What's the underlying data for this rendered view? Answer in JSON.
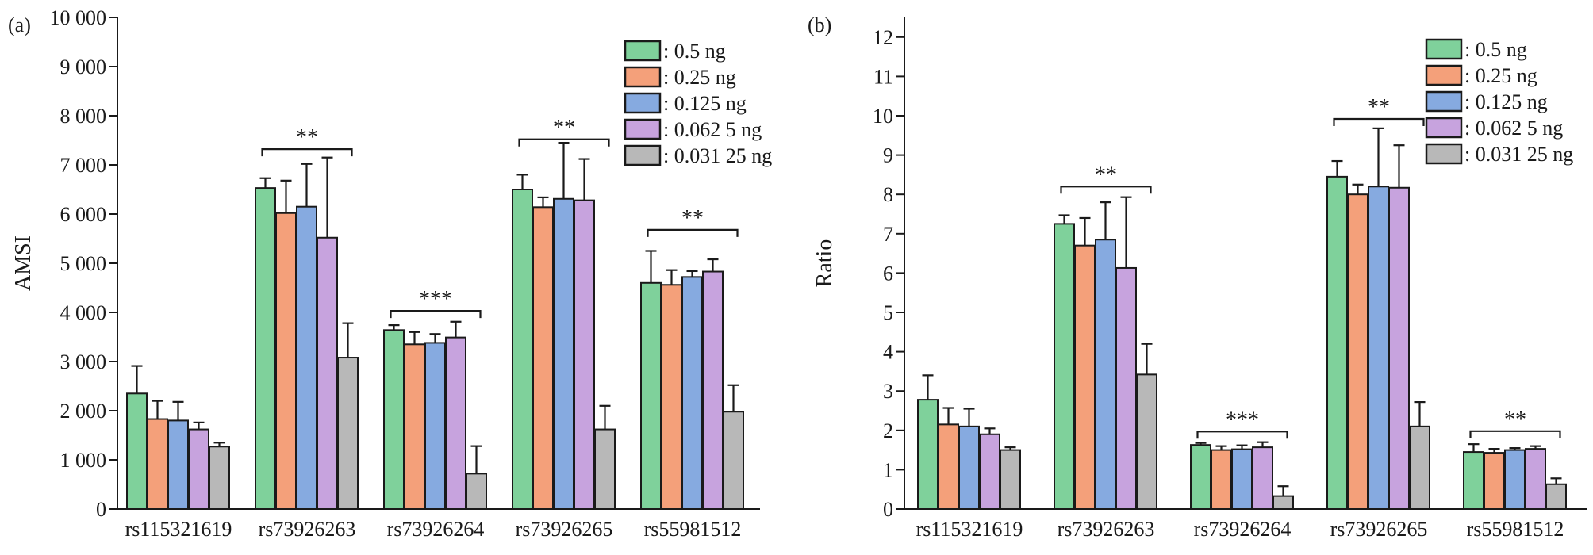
{
  "colors": {
    "series": [
      "#7fd19b",
      "#f4a07a",
      "#86aae0",
      "#c7a3de",
      "#b8b8b8"
    ],
    "axis": "#1a1a1a"
  },
  "chart_data": [
    {
      "type": "bar",
      "panel": "(a)",
      "title": "",
      "xlabel": "",
      "ylabel": "AMSI",
      "ylim": [
        0,
        10000
      ],
      "yticks": [
        0,
        1000,
        2000,
        3000,
        4000,
        5000,
        6000,
        7000,
        8000,
        9000,
        10000
      ],
      "ytick_labels": [
        "0",
        "1 000",
        "2 000",
        "3 000",
        "4 000",
        "5 000",
        "6 000",
        "7 000",
        "8 000",
        "9 000",
        "10 000"
      ],
      "categories": [
        "rs115321619",
        "rs73926263",
        "rs73926264",
        "rs73926265",
        "rs55981512"
      ],
      "legend_position": "top-right",
      "series": [
        {
          "name": ": 0.5 ng",
          "values": [
            2350,
            6530,
            3640,
            6500,
            4600
          ],
          "errors": [
            560,
            200,
            100,
            300,
            650
          ]
        },
        {
          "name": ": 0.25 ng",
          "values": [
            1830,
            6020,
            3350,
            6140,
            4560
          ],
          "errors": [
            370,
            660,
            250,
            200,
            300
          ]
        },
        {
          "name": ": 0.125 ng",
          "values": [
            1800,
            6150,
            3380,
            6310,
            4720
          ],
          "errors": [
            380,
            870,
            180,
            1140,
            120
          ]
        },
        {
          "name": ": 0.062 5 ng",
          "values": [
            1620,
            5520,
            3490,
            6280,
            4830
          ],
          "errors": [
            140,
            1630,
            320,
            840,
            250
          ]
        },
        {
          "name": ": 0.031 25 ng",
          "values": [
            1270,
            3080,
            720,
            1620,
            1980
          ],
          "errors": [
            80,
            700,
            560,
            480,
            540
          ]
        }
      ],
      "significance": [
        {
          "category": "rs73926263",
          "label": "**",
          "bracket_y": 7320
        },
        {
          "category": "rs73926264",
          "label": "***",
          "bracket_y": 4030
        },
        {
          "category": "rs73926265",
          "label": "**",
          "bracket_y": 7520
        },
        {
          "category": "rs55981512",
          "label": "**",
          "bracket_y": 5680
        }
      ],
      "grid": false
    },
    {
      "type": "bar",
      "panel": "(b)",
      "title": "",
      "xlabel": "",
      "ylabel": "Ratio",
      "ylim": [
        0,
        12.5
      ],
      "yticks": [
        0,
        1,
        2,
        3,
        4,
        5,
        6,
        7,
        8,
        9,
        10,
        11,
        12
      ],
      "ytick_labels": [
        "0",
        "1",
        "2",
        "3",
        "4",
        "5",
        "6",
        "7",
        "8",
        "9",
        "10",
        "11",
        "12"
      ],
      "categories": [
        "rs115321619",
        "rs73926263",
        "rs73926264",
        "rs73926265",
        "rs55981512"
      ],
      "legend_position": "top-right",
      "series": [
        {
          "name": ": 0.5 ng",
          "values": [
            2.78,
            7.25,
            1.63,
            8.45,
            1.45
          ],
          "errors": [
            0.62,
            0.22,
            0.05,
            0.4,
            0.2
          ]
        },
        {
          "name": ": 0.25 ng",
          "values": [
            2.15,
            6.7,
            1.5,
            8.0,
            1.43
          ],
          "errors": [
            0.42,
            0.7,
            0.1,
            0.25,
            0.1
          ]
        },
        {
          "name": ": 0.125 ng",
          "values": [
            2.1,
            6.85,
            1.52,
            8.2,
            1.5
          ],
          "errors": [
            0.45,
            0.95,
            0.1,
            1.48,
            0.05
          ]
        },
        {
          "name": ": 0.062 5 ng",
          "values": [
            1.9,
            6.13,
            1.57,
            8.17,
            1.53
          ],
          "errors": [
            0.15,
            1.8,
            0.13,
            1.08,
            0.07
          ]
        },
        {
          "name": ": 0.031 25 ng",
          "values": [
            1.5,
            3.42,
            0.33,
            2.1,
            0.63
          ],
          "errors": [
            0.07,
            0.78,
            0.25,
            0.62,
            0.15
          ]
        }
      ],
      "significance": [
        {
          "category": "rs73926263",
          "label": "**",
          "bracket_y": 8.2
        },
        {
          "category": "rs73926264",
          "label": "***",
          "bracket_y": 1.97
        },
        {
          "category": "rs73926265",
          "label": "**",
          "bracket_y": 9.92
        },
        {
          "category": "rs55981512",
          "label": "**",
          "bracket_y": 1.98
        }
      ],
      "grid": false
    }
  ]
}
